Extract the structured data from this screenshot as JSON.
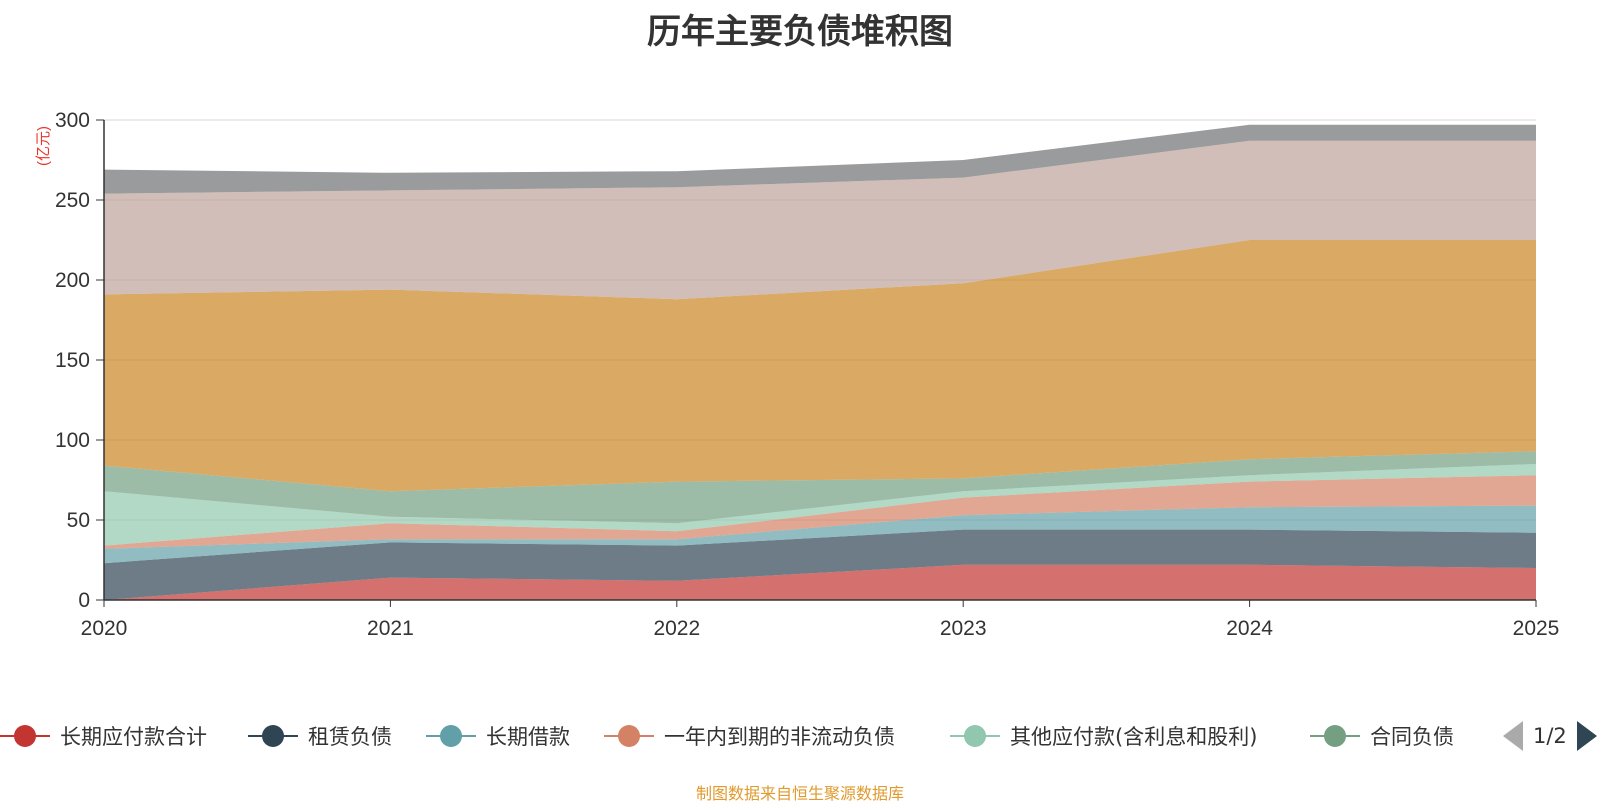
{
  "chart_data": {
    "type": "area",
    "stacked": true,
    "title": "历年主要负债堆积图",
    "unit_label": "(亿元)",
    "x": [
      "2020",
      "2021",
      "2022",
      "2023",
      "2024",
      "2025"
    ],
    "ylim": [
      0,
      300
    ],
    "yticks": [
      "0",
      "50",
      "100",
      "150",
      "200",
      "250",
      "300"
    ],
    "grid": true,
    "legend_position": "bottom",
    "series": [
      {
        "name": "长期应付款合计",
        "color": "#c23531",
        "values": [
          0,
          14,
          12,
          22,
          22,
          20
        ]
      },
      {
        "name": "租赁负债",
        "color": "#2f4554",
        "values": [
          23,
          22,
          22,
          22,
          22,
          22
        ]
      },
      {
        "name": "长期借款",
        "color": "#61a0a8",
        "values": [
          9,
          2,
          4,
          9,
          14,
          17
        ]
      },
      {
        "name": "一年内到期的非流动负债",
        "color": "#d48265",
        "values": [
          2,
          10,
          5,
          11,
          16,
          19
        ]
      },
      {
        "name": "其他应付款(含利息和股利)",
        "color": "#91c7ae",
        "values": [
          34,
          4,
          5,
          4,
          4,
          7
        ]
      },
      {
        "name": "合同负债",
        "color": "#749f83",
        "values": [
          16,
          16,
          26,
          8,
          10,
          8
        ]
      },
      {
        "name": "",
        "color": "#ca8622",
        "values": [
          107,
          126,
          114,
          122,
          137,
          132
        ]
      },
      {
        "name": "",
        "color": "#bda29a",
        "values": [
          63,
          62,
          70,
          66,
          62,
          62
        ]
      },
      {
        "name": "",
        "color": "#6e7074",
        "values": [
          15,
          11,
          10,
          11,
          10,
          10
        ]
      }
    ]
  },
  "legend": {
    "page": "1/2"
  },
  "source_note": "制图数据来自恒生聚源数据库"
}
